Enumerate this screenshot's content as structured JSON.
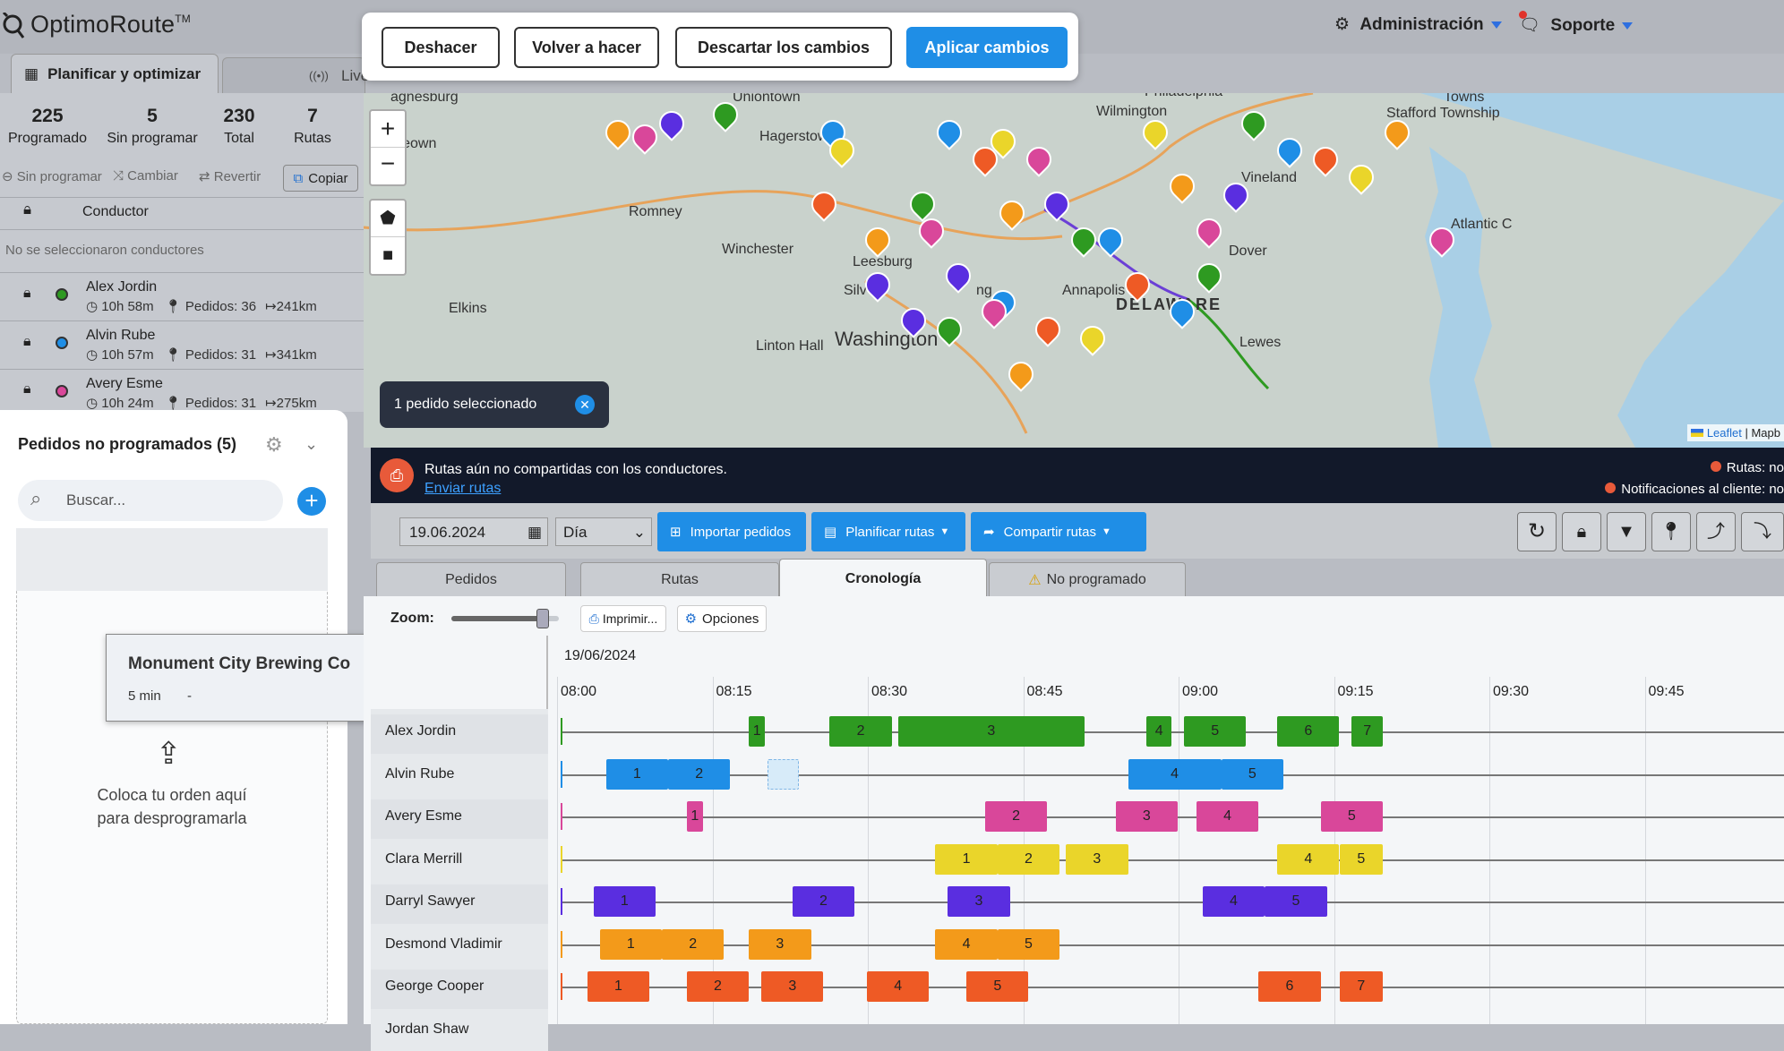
{
  "header": {
    "logo": "OptimoRoute",
    "logo_tm": "TM",
    "admin_label": "Administración",
    "support_label": "Soporte"
  },
  "undo_bar": {
    "undo": "Deshacer",
    "redo": "Volver a hacer",
    "discard": "Descartar los cambios",
    "apply": "Aplicar cambios"
  },
  "left": {
    "tab_plan": "Planificar y optimizar",
    "tab_live": "Live",
    "stats": [
      {
        "value": "225",
        "label": "Programado"
      },
      {
        "value": "5",
        "label": "Sin programar"
      },
      {
        "value": "230",
        "label": "Total"
      },
      {
        "value": "7",
        "label": "Rutas"
      }
    ],
    "tools": {
      "unschedule": "Sin programar",
      "change": "Cambiar",
      "revert": "Revertir",
      "copy": "Copiar"
    },
    "driver_header": "Conductor",
    "no_selection": "No se seleccionaron conductores",
    "drivers": [
      {
        "name": "Alex Jordin",
        "time": "10h 58m",
        "orders": "Pedidos: 36",
        "dist": "241km",
        "color": "#2e9a21"
      },
      {
        "name": "Alvin Rube",
        "time": "10h 57m",
        "orders": "Pedidos: 31",
        "dist": "341km",
        "color": "#1f8ee6"
      },
      {
        "name": "Avery Esme",
        "time": "10h 24m",
        "orders": "Pedidos: 31",
        "dist": "275km",
        "color": "#d9479a"
      }
    ]
  },
  "unscheduled": {
    "title": "Pedidos no programados (5)",
    "search_placeholder": "Buscar...",
    "card_title": "Monument City Brewing Co",
    "card_duration": "5 min",
    "card_dash": "-",
    "drop_line1": "Coloca tu orden aquí",
    "drop_line2": "para desprogramarla"
  },
  "map": {
    "labels": [
      "agnesburg",
      "Uniontown",
      "orgeown",
      "Romney",
      "Winchester",
      "Leesburg",
      "Washington",
      "Linton Hall",
      "Hagerstown",
      "Wilmington",
      "Philadelphia",
      "Vineland",
      "Dover",
      "DELAWARE",
      "Lewes",
      "Atlantic C",
      "Stafford Township",
      "Towns",
      "Elkins",
      "Annapolis",
      "Silv",
      "ng"
    ],
    "selection_toast": "1 pedido seleccionado",
    "attribution_leaflet": "Leaflet",
    "attribution_rest": "| Mapb"
  },
  "notif": {
    "text": "Rutas aún no compartidas con los conductores.",
    "link": "Enviar rutas",
    "routes_status": "Rutas: no",
    "client_notif": "Notificaciones al cliente: no"
  },
  "toolbar": {
    "date": "19.06.2024",
    "period": "Día",
    "import": "Importar pedidos",
    "plan": "Planificar rutas",
    "share": "Compartir rutas"
  },
  "views": {
    "orders": "Pedidos",
    "routes": "Rutas",
    "timeline": "Cronología",
    "unscheduled": "No programado"
  },
  "timeline": {
    "zoom_label": "Zoom:",
    "zoom_level": 0.85,
    "print": "Imprimir...",
    "options": "Opciones",
    "date": "19/06/2024",
    "ticks": [
      "08:00",
      "08:15",
      "08:30",
      "08:45",
      "09:00",
      "09:15",
      "09:30",
      "09:45"
    ],
    "rows": [
      {
        "name": "Alex Jordin",
        "color": "#2e9a21",
        "blocks": [
          [
            "1",
            8.3,
            8.32
          ],
          [
            "2",
            8.43,
            8.53
          ],
          [
            "3",
            8.54,
            8.84
          ],
          [
            "4",
            8.94,
            8.98
          ],
          [
            "5",
            9.0,
            9.1
          ],
          [
            "6",
            9.15,
            9.25
          ],
          [
            "7",
            9.27,
            9.32
          ]
        ]
      },
      {
        "name": "Alvin Rube",
        "color": "#1f8ee6",
        "blocks": [
          [
            "1",
            8.07,
            8.17
          ],
          [
            "2",
            8.17,
            8.27
          ],
          [
            "",
            8.33,
            8.38
          ],
          [
            "4",
            8.91,
            9.06
          ],
          [
            "5",
            9.06,
            9.16
          ]
        ]
      },
      {
        "name": "Avery Esme",
        "color": "#d9479a",
        "blocks": [
          [
            "1",
            8.2,
            8.22
          ],
          [
            "2",
            8.68,
            8.78
          ],
          [
            "3",
            8.89,
            8.99
          ],
          [
            "4",
            9.02,
            9.12
          ],
          [
            "5",
            9.22,
            9.32
          ]
        ]
      },
      {
        "name": "Clara Merrill",
        "color": "#ead52a",
        "blocks": [
          [
            "1",
            8.6,
            8.7
          ],
          [
            "2",
            8.7,
            8.8
          ],
          [
            "3",
            8.81,
            8.91
          ],
          [
            "4",
            9.15,
            9.25
          ],
          [
            "5",
            9.25,
            9.32
          ]
        ]
      },
      {
        "name": "Darryl Sawyer",
        "color": "#5a2ee0",
        "blocks": [
          [
            "1",
            8.05,
            8.15
          ],
          [
            "2",
            8.37,
            8.47
          ],
          [
            "3",
            8.62,
            8.72
          ],
          [
            "4",
            9.03,
            9.13
          ],
          [
            "5",
            9.13,
            9.23
          ]
        ]
      },
      {
        "name": "Desmond Vladimir",
        "color": "#f39a1a",
        "blocks": [
          [
            "1",
            8.06,
            8.16
          ],
          [
            "2",
            8.16,
            8.26
          ],
          [
            "3",
            8.3,
            8.4
          ],
          [
            "4",
            8.6,
            8.7
          ],
          [
            "5",
            8.7,
            8.8
          ]
        ]
      },
      {
        "name": "George Cooper",
        "color": "#ee5a25",
        "blocks": [
          [
            "1",
            8.04,
            8.14
          ],
          [
            "2",
            8.2,
            8.3
          ],
          [
            "3",
            8.32,
            8.42
          ],
          [
            "4",
            8.49,
            8.59
          ],
          [
            "5",
            8.65,
            8.75
          ],
          [
            "6",
            9.12,
            9.22
          ],
          [
            "7",
            9.25,
            9.32
          ]
        ]
      },
      {
        "name": "Jordan Shaw",
        "color": "#888888",
        "blocks": []
      }
    ]
  },
  "colors": {
    "accent": "#1f8ee6",
    "navy": "#12192a"
  }
}
